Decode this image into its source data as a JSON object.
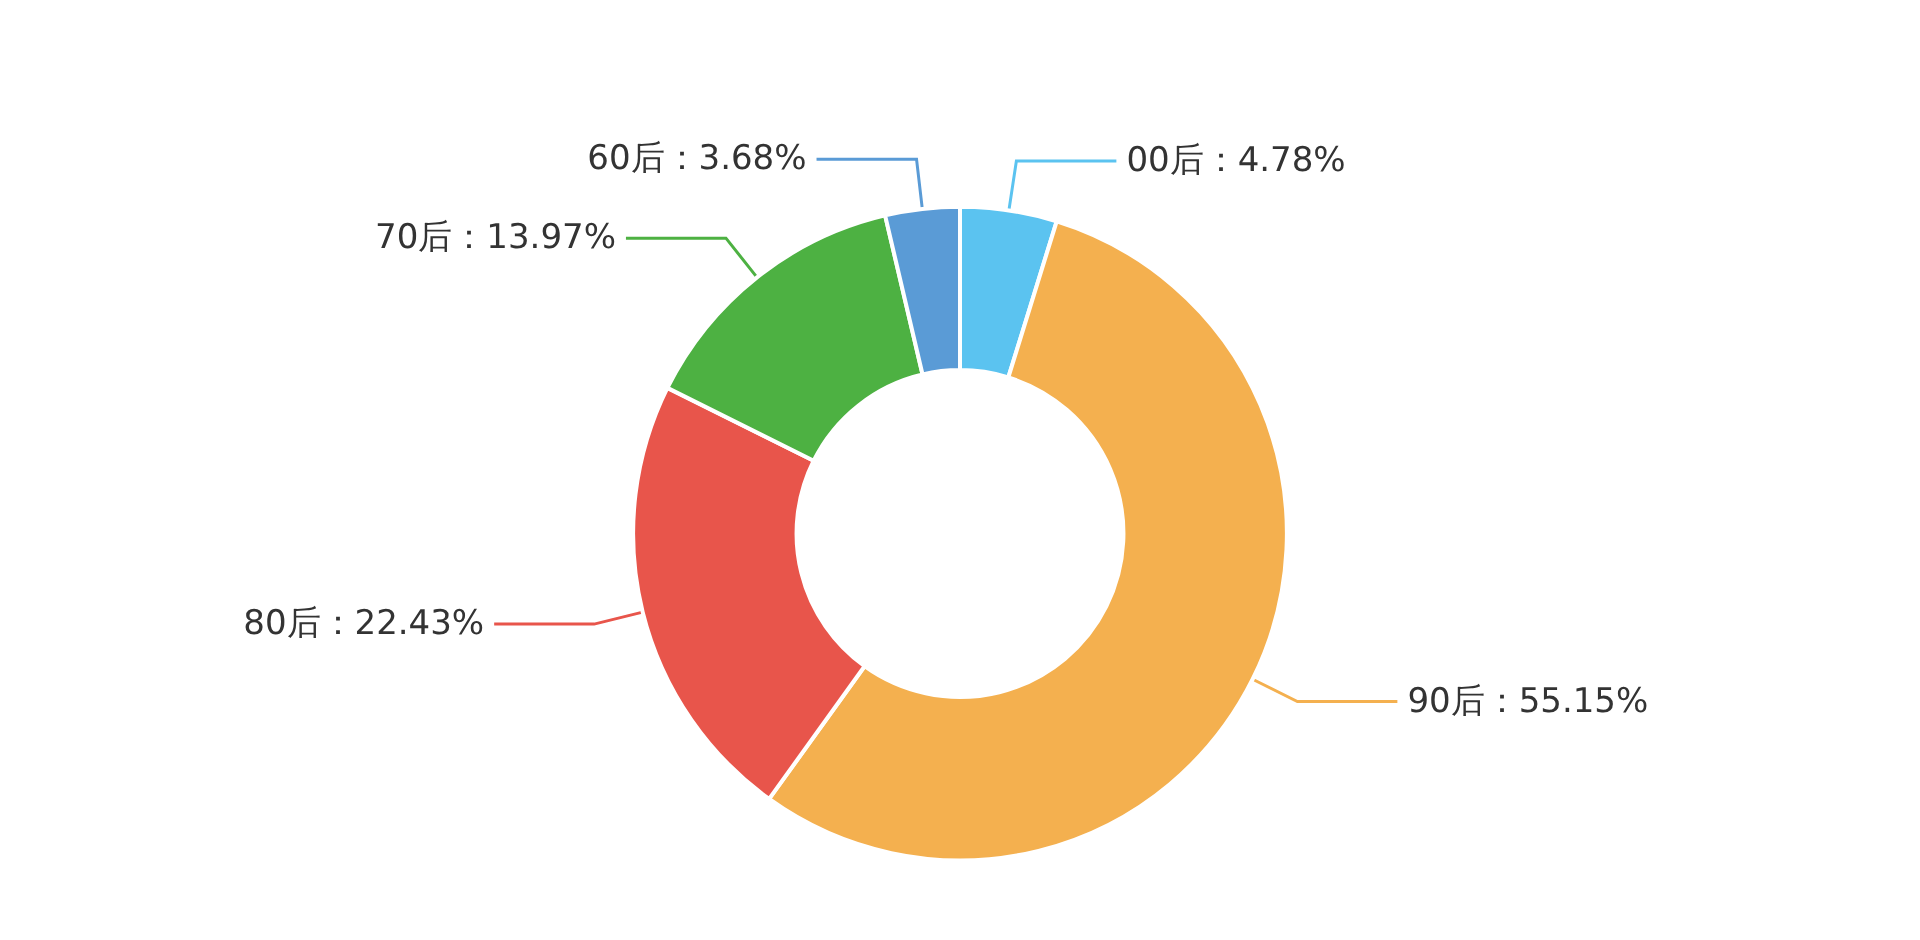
{
  "chart_data": {
    "type": "donut",
    "categories": [
      "00后",
      "90后",
      "80后",
      "70后",
      "60后"
    ],
    "values": [
      4.78,
      55.15,
      22.43,
      13.97,
      3.68
    ],
    "colors": [
      "#5bc3f0",
      "#f4b04f",
      "#e8554b",
      "#4db142",
      "#5a9bd6"
    ],
    "value_labels": [
      "：4.78%",
      "：55.15%",
      "：22.43%",
      "：13.97%",
      "：3.68%"
    ],
    "legend": false
  }
}
